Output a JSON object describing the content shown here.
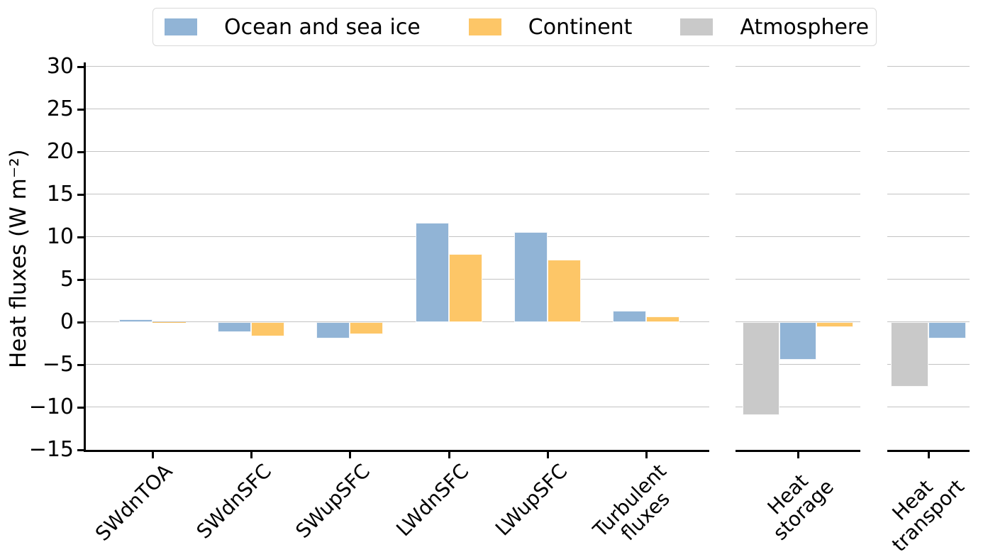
{
  "figure": {
    "background": "#ffffff"
  },
  "legend": {
    "position": "top",
    "entries": [
      {
        "label": "Ocean and sea ice",
        "color": "#91b4d6"
      },
      {
        "label": "Continent",
        "color": "#fdc667"
      },
      {
        "label": "Atmosphere",
        "color": "#c9c9c9"
      }
    ]
  },
  "chart_data": {
    "type": "bar",
    "title": "",
    "xlabel": "",
    "ylabel": "Heat fluxes (W m⁻²)",
    "ylim": [
      -15,
      30
    ],
    "yticks": [
      30,
      25,
      20,
      15,
      10,
      5,
      0,
      -5,
      -10,
      -15
    ],
    "grid": true,
    "legend_position": "top",
    "panels": [
      {
        "name": "surface-fluxes",
        "categories": [
          "SWdnTOA",
          "SWdnSFC",
          "SWupSFC",
          "LWdnSFC",
          "LWupSFC",
          "Turbulent\nfluxes"
        ],
        "series": [
          {
            "name": "Ocean and sea ice",
            "color": "#91b4d6",
            "values": [
              0.3,
              -1.2,
              -1.9,
              11.7,
              10.6,
              1.3
            ]
          },
          {
            "name": "Continent",
            "color": "#fdc667",
            "values": [
              -0.1,
              -1.7,
              -1.4,
              8.0,
              7.3,
              0.7
            ]
          }
        ]
      },
      {
        "name": "heat-storage",
        "categories": [
          "Heat\nstorage"
        ],
        "series": [
          {
            "name": "Atmosphere",
            "color": "#c9c9c9",
            "values": [
              -10.9
            ]
          },
          {
            "name": "Ocean and sea ice",
            "color": "#91b4d6",
            "values": [
              -4.4
            ]
          },
          {
            "name": "Continent",
            "color": "#fdc667",
            "values": [
              -0.6
            ]
          }
        ]
      },
      {
        "name": "heat-transport",
        "categories": [
          "Heat\ntransport"
        ],
        "series": [
          {
            "name": "Atmosphere",
            "color": "#c9c9c9",
            "values": [
              -7.6
            ]
          },
          {
            "name": "Ocean and sea ice",
            "color": "#91b4d6",
            "values": [
              -1.9
            ]
          }
        ]
      }
    ]
  },
  "colors": {
    "axis": "#000000",
    "grid": "#c3c3c3",
    "legend_border": "#d9d9d9"
  }
}
